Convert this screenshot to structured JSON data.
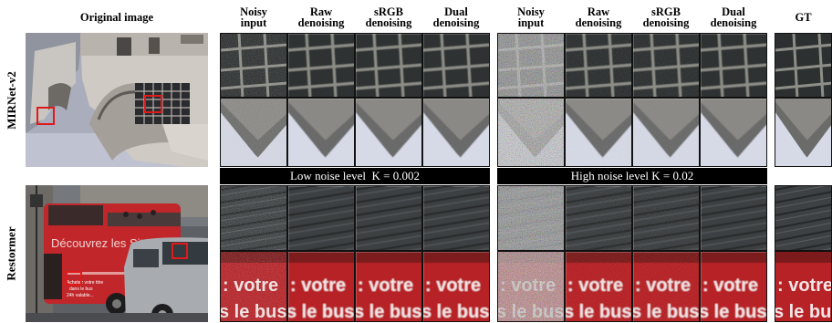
{
  "headers": {
    "original": "Original image",
    "noisy_input": "Noisy\ninput",
    "raw_denoising": "Raw\ndenoising",
    "srgb_denoising": "sRGB\ndenoising",
    "dual_denoising": "Dual\ndenoising",
    "gt": "GT"
  },
  "rows": [
    {
      "label": "MIRNet-v2"
    },
    {
      "label": "Restormer"
    }
  ],
  "noise_levels": {
    "low": "Low noise level  K = 0.002",
    "high": "High noise level K = 0.02"
  },
  "colors": {
    "highlight_box": "#e01a1a",
    "bus_red": "#c0262a",
    "separator_bar": "#000000"
  }
}
